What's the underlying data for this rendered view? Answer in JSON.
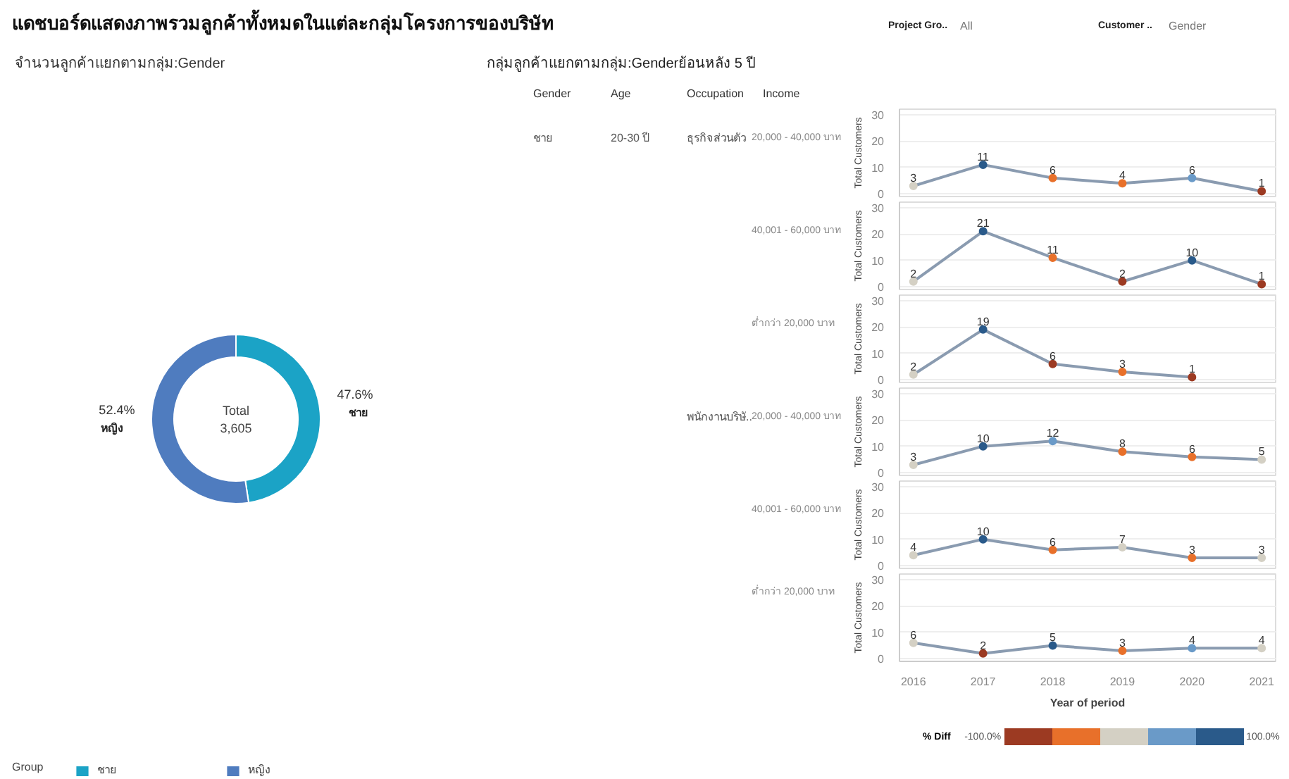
{
  "chart_data": [
    {
      "type": "donut",
      "title": "แดชบอร์ดแสดงภาพรวมลูกค้าทั้งหมดในแต่ละกลุ่มโครงการของบริษัท",
      "subtitle": "จำนวนลูกค้าแยกตามกลุ่ม:Gender",
      "categories": [
        "ชาย",
        "หญิง"
      ],
      "values": [
        47.6,
        52.4
      ],
      "colors": [
        "#1ba3c6",
        "#4f7cbf"
      ],
      "value_labels": [
        "47.6%",
        "52.4%"
      ],
      "annotations": [
        "Total",
        "3,605"
      ],
      "legend": "bottom",
      "legend_title": "Group"
    },
    {
      "type": "other",
      "annotations": [
        "Project Gro..",
        "All",
        "Customer ..",
        "Gender"
      ]
    },
    {
      "type": "other",
      "title": "กลุ่มลูกค้าแยกตามกลุ่ม:Genderย้อนหลัง 5 ปี",
      "annotations": [
        "Gender",
        "Age",
        "Occupation",
        "Income"
      ]
    },
    {
      "type": "line",
      "subtitle": "20,000 - 40,000 บาท",
      "annotations": [
        "ชาย",
        "20-30 ปี",
        "ธุรกิจส่วนตัว"
      ],
      "x": [
        2016,
        2017,
        2018,
        2019,
        2020,
        2021
      ],
      "series": [
        {
          "color": "#8a9bb0",
          "values": [
            3,
            11,
            6,
            4,
            6,
            1
          ],
          "colors": [
            "#d4d0c4",
            "#2a5a8a",
            "#e8702a",
            "#e8702a",
            "#6a9ac8",
            "#9c3a22"
          ]
        }
      ],
      "ylabel": "Total Customers",
      "xlim": [
        2015.8,
        2021.2
      ],
      "ylim": [
        -1,
        32
      ],
      "xticks": [
        2016,
        2017,
        2018,
        2019,
        2020,
        2021
      ],
      "yticks": [
        0,
        10,
        20,
        30
      ],
      "tick_labels": "y",
      "grid": "y",
      "marker": "circle",
      "data_labels": true
    },
    {
      "type": "line",
      "subtitle": "40,001 - 60,000 บาท",
      "x": [
        2016,
        2017,
        2018,
        2019,
        2020,
        2021
      ],
      "series": [
        {
          "color": "#8a9bb0",
          "values": [
            2,
            21,
            11,
            2,
            10,
            1
          ],
          "colors": [
            "#d4d0c4",
            "#2a5a8a",
            "#e8702a",
            "#9c3a22",
            "#2a5a8a",
            "#9c3a22"
          ]
        }
      ],
      "ylabel": "Total Customers",
      "xlim": [
        2015.8,
        2021.2
      ],
      "ylim": [
        -1,
        32
      ],
      "xticks": [
        2016,
        2017,
        2018,
        2019,
        2020,
        2021
      ],
      "yticks": [
        0,
        10,
        20,
        30
      ],
      "tick_labels": "y",
      "grid": "y",
      "marker": "circle",
      "data_labels": true
    },
    {
      "type": "line",
      "subtitle": "ต่ำกว่า 20,000 บาท",
      "x": [
        2016,
        2017,
        2018,
        2019,
        2020
      ],
      "series": [
        {
          "color": "#8a9bb0",
          "values": [
            2,
            19,
            6,
            3,
            1
          ],
          "colors": [
            "#d4d0c4",
            "#2a5a8a",
            "#9c3a22",
            "#e8702a",
            "#9c3a22"
          ]
        }
      ],
      "ylabel": "Total Customers",
      "xlim": [
        2015.8,
        2021.2
      ],
      "ylim": [
        -1,
        32
      ],
      "xticks": [
        2016,
        2017,
        2018,
        2019,
        2020,
        2021
      ],
      "yticks": [
        0,
        10,
        20,
        30
      ],
      "tick_labels": "y",
      "grid": "y",
      "marker": "circle",
      "data_labels": true
    },
    {
      "type": "line",
      "subtitle": "20,000 - 40,000 บาท",
      "annotations": [
        "พนักงานบริษั.."
      ],
      "x": [
        2016,
        2017,
        2018,
        2019,
        2020,
        2021
      ],
      "series": [
        {
          "color": "#8a9bb0",
          "values": [
            3,
            10,
            12,
            8,
            6,
            5
          ],
          "colors": [
            "#d4d0c4",
            "#2a5a8a",
            "#6a9ac8",
            "#e8702a",
            "#e8702a",
            "#d4d0c4"
          ]
        }
      ],
      "ylabel": "Total Customers",
      "xlim": [
        2015.8,
        2021.2
      ],
      "ylim": [
        -1,
        32
      ],
      "xticks": [
        2016,
        2017,
        2018,
        2019,
        2020,
        2021
      ],
      "yticks": [
        0,
        10,
        20,
        30
      ],
      "tick_labels": "y",
      "grid": "y",
      "marker": "circle",
      "data_labels": true
    },
    {
      "type": "line",
      "subtitle": "40,001 - 60,000 บาท",
      "x": [
        2016,
        2017,
        2018,
        2019,
        2020,
        2021
      ],
      "series": [
        {
          "color": "#8a9bb0",
          "values": [
            4,
            10,
            6,
            7,
            3,
            3
          ],
          "colors": [
            "#d4d0c4",
            "#2a5a8a",
            "#e8702a",
            "#d4d0c4",
            "#e8702a",
            "#d4d0c4"
          ]
        }
      ],
      "ylabel": "Total Customers",
      "xlim": [
        2015.8,
        2021.2
      ],
      "ylim": [
        -1,
        32
      ],
      "xticks": [
        2016,
        2017,
        2018,
        2019,
        2020,
        2021
      ],
      "yticks": [
        0,
        10,
        20,
        30
      ],
      "tick_labels": "y",
      "grid": "y",
      "marker": "circle",
      "data_labels": true
    },
    {
      "type": "line",
      "subtitle": "ต่ำกว่า 20,000 บาท",
      "x": [
        2016,
        2017,
        2018,
        2019,
        2020,
        2021
      ],
      "series": [
        {
          "color": "#8a9bb0",
          "values": [
            6,
            2,
            5,
            3,
            4,
            4
          ],
          "colors": [
            "#d4d0c4",
            "#9c3a22",
            "#2a5a8a",
            "#e8702a",
            "#6a9ac8",
            "#d4d0c4"
          ]
        }
      ],
      "ylabel": "Total Customers",
      "xlabel": "Year of period",
      "xlim": [
        2015.8,
        2021.2
      ],
      "ylim": [
        -1,
        32
      ],
      "xticks": [
        2016,
        2017,
        2018,
        2019,
        2020,
        2021
      ],
      "yticks": [
        0,
        10,
        20,
        30
      ],
      "grid": "y",
      "marker": "circle",
      "data_labels": true
    },
    {
      "type": "other",
      "title": "% Diff",
      "annotations": [
        "-100.0%",
        "100.0%"
      ],
      "colors": [
        "#9c3a22",
        "#e8702a",
        "#d4d0c4",
        "#6a9ac8",
        "#2a5a8a"
      ]
    }
  ]
}
